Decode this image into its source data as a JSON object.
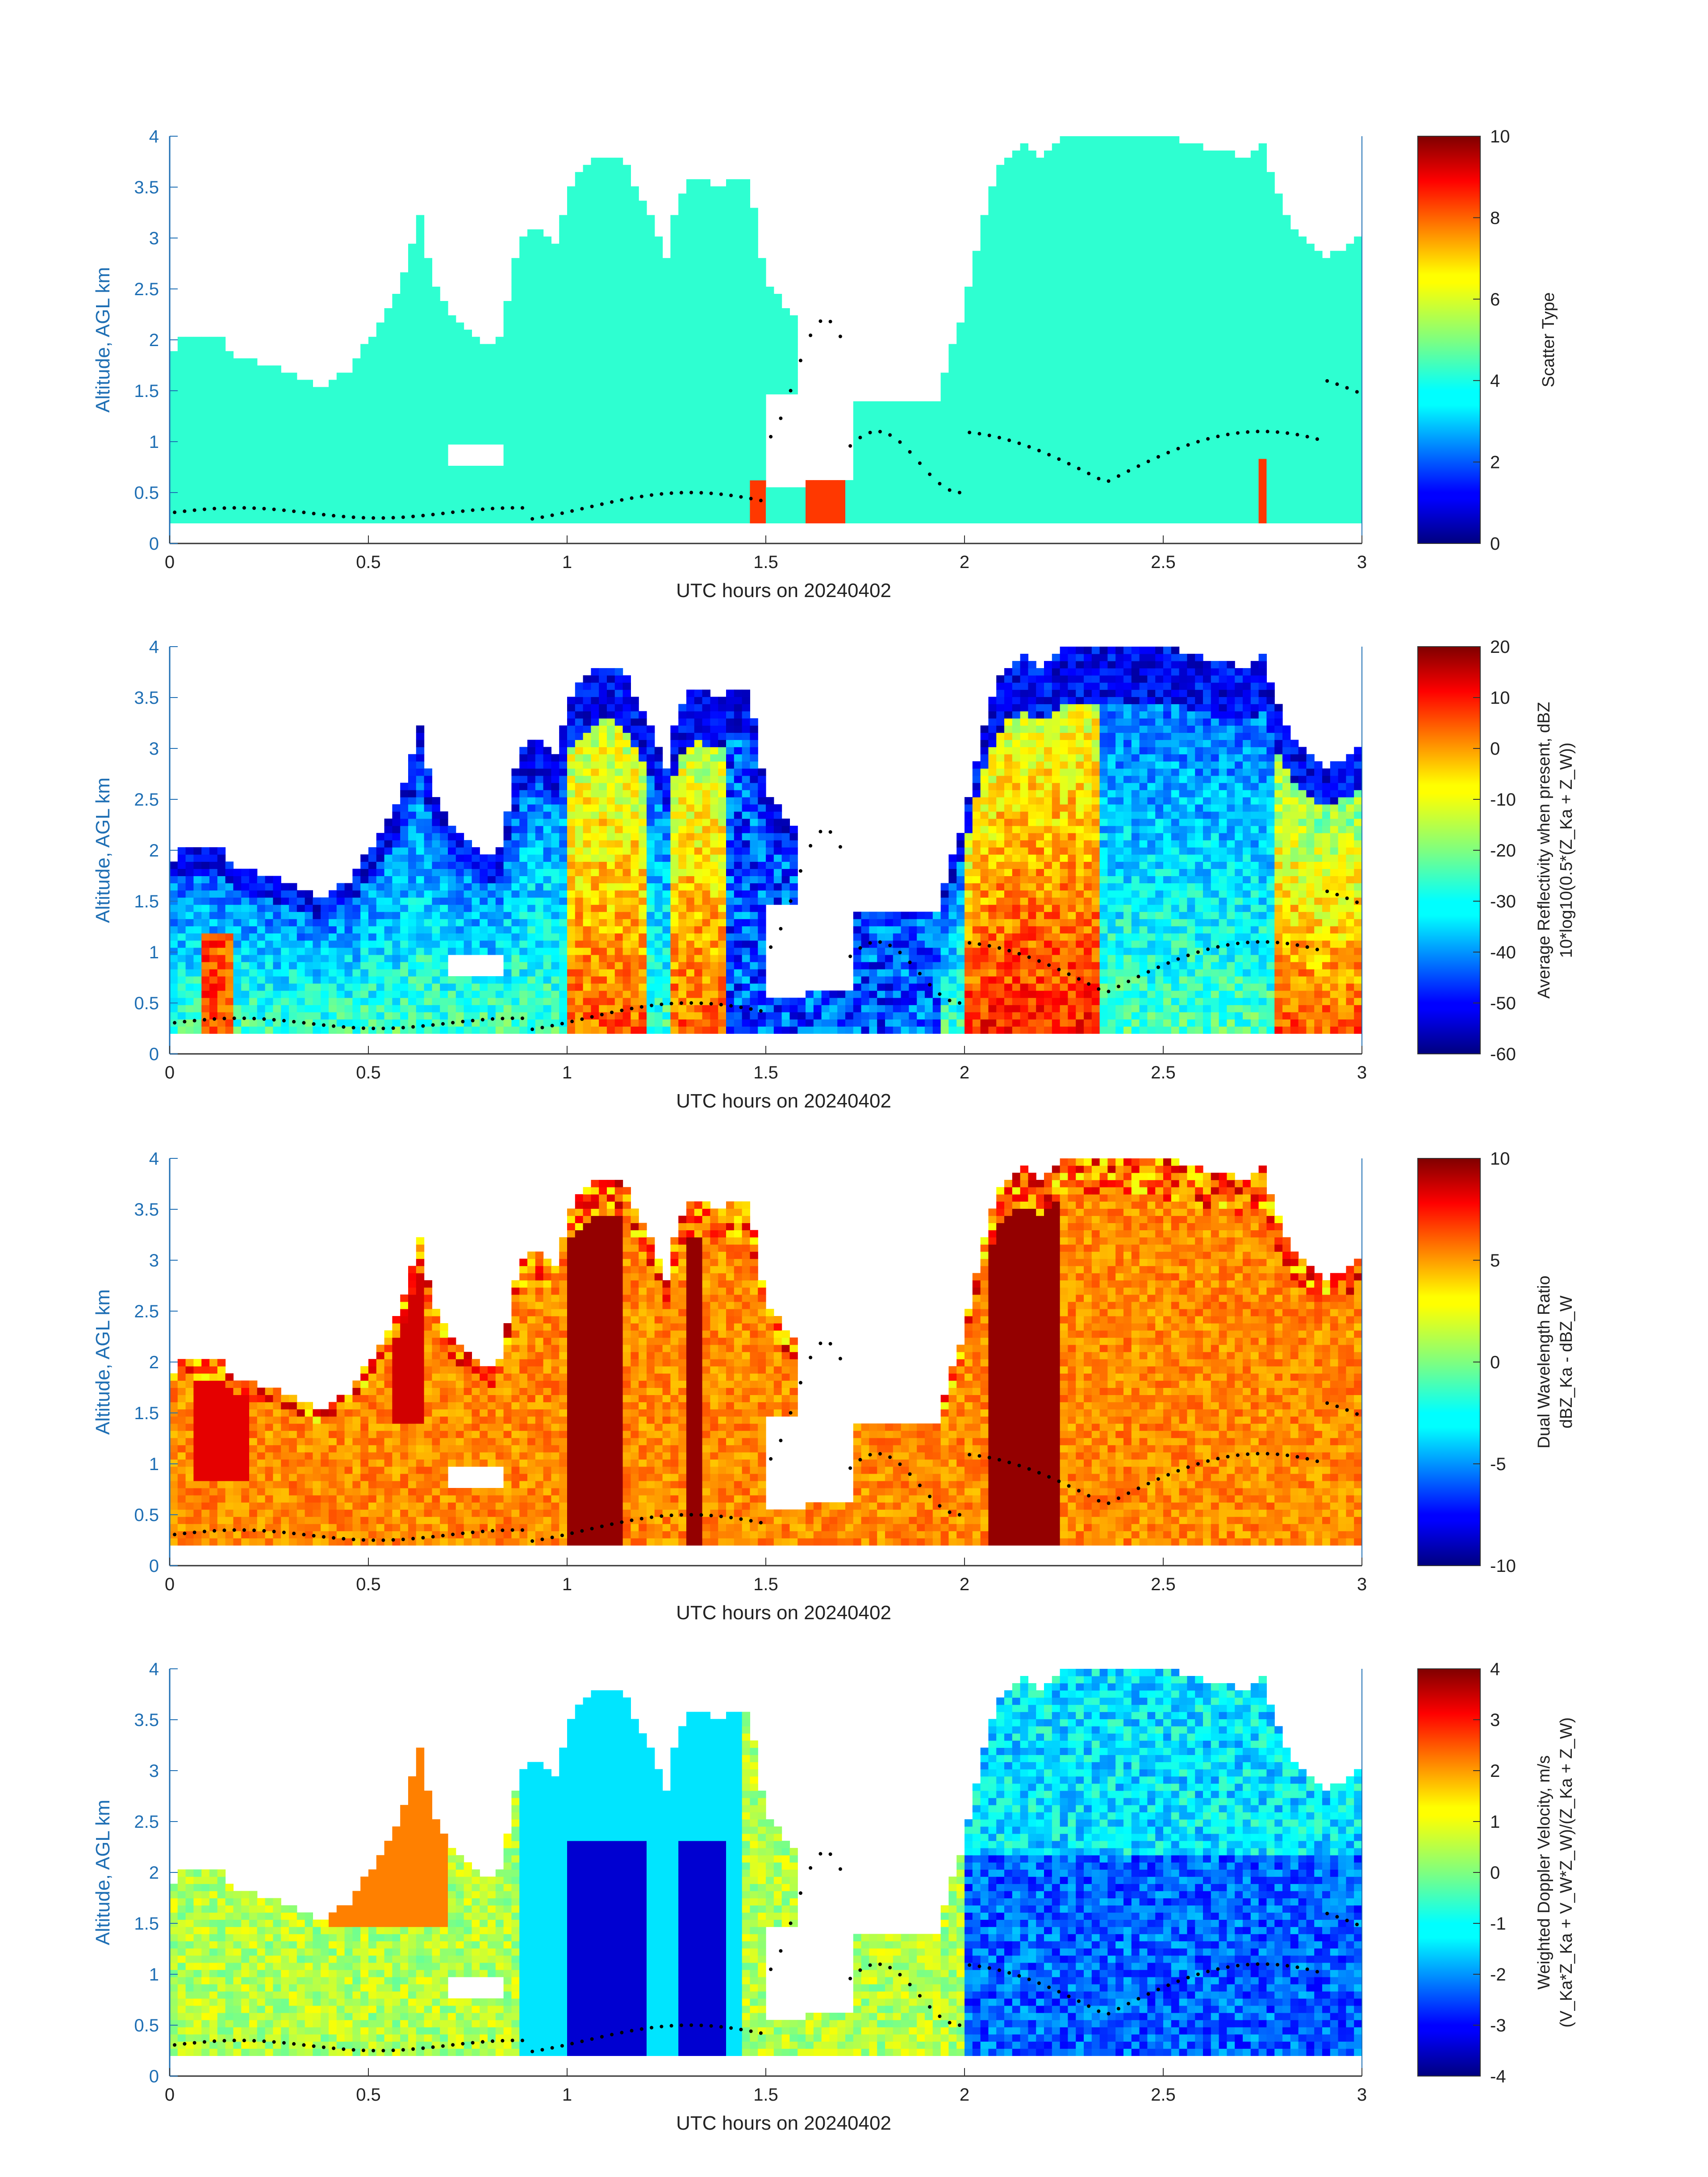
{
  "chart_data": [
    {
      "type": "heatmap",
      "xlabel": "UTC hours on 20240402",
      "ylabel": "Altitude, AGL km",
      "xlim": [
        0,
        3
      ],
      "ylim": [
        0,
        4
      ],
      "xticks": [
        "0",
        "0.5",
        "1",
        "1.5",
        "2",
        "2.5",
        "3"
      ],
      "yticks": [
        "0",
        "0.5",
        "1",
        "1.5",
        "2",
        "2.5",
        "3",
        "3.5",
        "4"
      ],
      "colorbar_label": "Scatter Type",
      "colorbar_ticks": [
        "0",
        "2",
        "4",
        "6",
        "8",
        "10"
      ],
      "clim": [
        0,
        10
      ],
      "colormap": "jet",
      "field": "scatter_type"
    },
    {
      "type": "heatmap",
      "xlabel": "UTC hours on 20240402",
      "ylabel": "Altitude, AGL km",
      "xlim": [
        0,
        3
      ],
      "ylim": [
        0,
        4
      ],
      "xticks": [
        "0",
        "0.5",
        "1",
        "1.5",
        "2",
        "2.5",
        "3"
      ],
      "yticks": [
        "0",
        "0.5",
        "1",
        "1.5",
        "2",
        "2.5",
        "3",
        "3.5",
        "4"
      ],
      "colorbar_label": "Average Reflectivity when present, dBZ",
      "colorbar_label2": "10*log10(0.5*(Z_Ka + Z_W))",
      "colorbar_ticks": [
        "-60",
        "-50",
        "-40",
        "-30",
        "-20",
        "-10",
        "0",
        "10",
        "20"
      ],
      "clim": [
        -60,
        20
      ],
      "colormap": "jet",
      "field": "reflectivity"
    },
    {
      "type": "heatmap",
      "xlabel": "UTC hours on 20240402",
      "ylabel": "Altitude, AGL km",
      "xlim": [
        0,
        3
      ],
      "ylim": [
        0,
        4
      ],
      "xticks": [
        "0",
        "0.5",
        "1",
        "1.5",
        "2",
        "2.5",
        "3"
      ],
      "yticks": [
        "0",
        "0.5",
        "1",
        "1.5",
        "2",
        "2.5",
        "3",
        "3.5",
        "4"
      ],
      "colorbar_label": "Dual Wavelength Ratio",
      "colorbar_label2": "dBZ_Ka - dBZ_W",
      "colorbar_ticks": [
        "-10",
        "-5",
        "0",
        "5",
        "10"
      ],
      "clim": [
        -10,
        10
      ],
      "colormap": "jet",
      "field": "dwr"
    },
    {
      "type": "heatmap",
      "xlabel": "UTC hours on 20240402",
      "ylabel": "Altitude, AGL km",
      "xlim": [
        0,
        3
      ],
      "ylim": [
        0,
        4
      ],
      "xticks": [
        "0",
        "0.5",
        "1",
        "1.5",
        "2",
        "2.5",
        "3"
      ],
      "yticks": [
        "0",
        "0.5",
        "1",
        "1.5",
        "2",
        "2.5",
        "3",
        "3.5",
        "4"
      ],
      "colorbar_label": "Weighted Doppler Velocity, m/s",
      "colorbar_label2": "(V_Ka*Z_Ka + V_W*Z_W)/(Z_Ka + Z_W)",
      "colorbar_ticks": [
        "-4",
        "-3",
        "-2",
        "-1",
        "0",
        "1",
        "2",
        "3",
        "4"
      ],
      "clim": [
        -4,
        4
      ],
      "colormap": "jet",
      "field": "velocity"
    }
  ]
}
